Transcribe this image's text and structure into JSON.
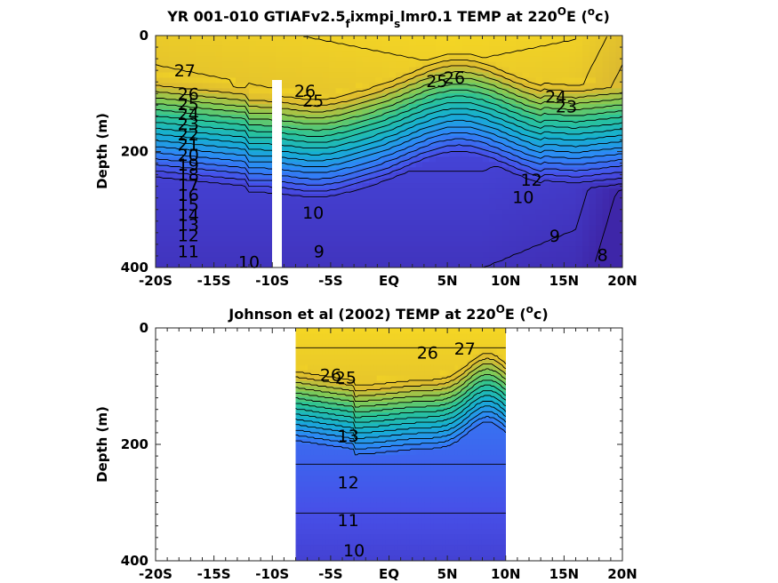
{
  "chart_data": [
    {
      "type": "heatmap",
      "subtype": "filled-contour",
      "title": "YR 001-010 GTIAFv2.5",
      "title_sub1": "f",
      "title_mid": "ixmpi",
      "title_sub2": "s",
      "title_tail": "lmr0.1 TEMP at 220",
      "title_sup": "O",
      "title_end": "E (",
      "title_sup2": "o",
      "title_close": "c)",
      "ylabel": "Depth (m)",
      "xlim": [
        -20,
        20
      ],
      "ylim": [
        0,
        400
      ],
      "y_reversed": true,
      "x_tick_labels": [
        "-20S",
        "-15S",
        "-10S",
        "-5S",
        "EQ",
        "5N",
        "10N",
        "15N",
        "20N"
      ],
      "x_ticks": [
        -20,
        -15,
        -10,
        -5,
        0,
        5,
        10,
        15,
        20
      ],
      "y_tick_labels": [
        "0",
        "200",
        "400"
      ],
      "y_ticks": [
        0,
        200,
        400
      ],
      "data_extent_lat": [
        -20,
        20
      ],
      "gap_lat": -9.5,
      "contour_levels": [
        8,
        9,
        10,
        11,
        12,
        13,
        14,
        15,
        16,
        17,
        18,
        19,
        20,
        21,
        22,
        23,
        24,
        25,
        26,
        27
      ],
      "contour_labels": [
        {
          "text": "27",
          "lat": -17.5,
          "depth": 60
        },
        {
          "text": "26",
          "lat": -17.2,
          "depth": 100
        },
        {
          "text": "25",
          "lat": -17.2,
          "depth": 118
        },
        {
          "text": "24",
          "lat": -17.2,
          "depth": 135
        },
        {
          "text": "23",
          "lat": -17.2,
          "depth": 152
        },
        {
          "text": "22",
          "lat": -17.2,
          "depth": 170
        },
        {
          "text": "21",
          "lat": -17.2,
          "depth": 187
        },
        {
          "text": "20",
          "lat": -17.2,
          "depth": 205
        },
        {
          "text": "19",
          "lat": -17.2,
          "depth": 222
        },
        {
          "text": "18",
          "lat": -17.2,
          "depth": 239
        },
        {
          "text": "17",
          "lat": -17.2,
          "depth": 257
        },
        {
          "text": "16",
          "lat": -17.2,
          "depth": 274
        },
        {
          "text": "15",
          "lat": -17.2,
          "depth": 291
        },
        {
          "text": "14",
          "lat": -17.2,
          "depth": 309
        },
        {
          "text": "13",
          "lat": -17.2,
          "depth": 326
        },
        {
          "text": "12",
          "lat": -17.2,
          "depth": 344
        },
        {
          "text": "11",
          "lat": -17.2,
          "depth": 372
        },
        {
          "text": "10",
          "lat": -12.0,
          "depth": 390
        },
        {
          "text": "26",
          "lat": -7.2,
          "depth": 95
        },
        {
          "text": "25",
          "lat": -6.5,
          "depth": 112
        },
        {
          "text": "10",
          "lat": -6.5,
          "depth": 305
        },
        {
          "text": "9",
          "lat": -6.0,
          "depth": 372
        },
        {
          "text": "25",
          "lat": 4.1,
          "depth": 78
        },
        {
          "text": "26",
          "lat": 5.6,
          "depth": 72
        },
        {
          "text": "24",
          "lat": 14.3,
          "depth": 105
        },
        {
          "text": "23",
          "lat": 15.2,
          "depth": 122
        },
        {
          "text": "12",
          "lat": 12.2,
          "depth": 248
        },
        {
          "text": "10",
          "lat": 11.5,
          "depth": 278
        },
        {
          "text": "9",
          "lat": 14.2,
          "depth": 345
        },
        {
          "text": "8",
          "lat": 18.3,
          "depth": 378
        }
      ],
      "colormap": "parula",
      "temp_range": [
        8,
        28
      ]
    },
    {
      "type": "heatmap",
      "subtype": "filled-contour",
      "title": "Johnson et al (2002) TEMP at 220",
      "title_sup": "O",
      "title_end": "E (",
      "title_sup2": "o",
      "title_close": "c)",
      "ylabel": "Depth (m)",
      "xlim": [
        -20,
        20
      ],
      "ylim": [
        0,
        400
      ],
      "y_reversed": true,
      "x_tick_labels": [
        "-20S",
        "-15S",
        "-10S",
        "-5S",
        "EQ",
        "5N",
        "10N",
        "15N",
        "20N"
      ],
      "x_ticks": [
        -20,
        -15,
        -10,
        -5,
        0,
        5,
        10,
        15,
        20
      ],
      "y_tick_labels": [
        "0",
        "200",
        "400"
      ],
      "y_ticks": [
        0,
        200,
        400
      ],
      "data_extent_lat": [
        -8,
        10
      ],
      "contour_levels": [
        10,
        11,
        12,
        13,
        14,
        15,
        16,
        17,
        18,
        19,
        20,
        21,
        22,
        23,
        24,
        25,
        26,
        27
      ],
      "contour_labels": [
        {
          "text": "26",
          "lat": -5.0,
          "depth": 80
        },
        {
          "text": "25",
          "lat": -3.7,
          "depth": 85
        },
        {
          "text": "27",
          "lat": 6.5,
          "depth": 35
        },
        {
          "text": "26",
          "lat": 3.3,
          "depth": 42
        },
        {
          "text": "13",
          "lat": -3.5,
          "depth": 185
        },
        {
          "text": "12",
          "lat": -3.5,
          "depth": 265
        },
        {
          "text": "11",
          "lat": -3.5,
          "depth": 330
        },
        {
          "text": "10",
          "lat": -3.0,
          "depth": 382
        }
      ],
      "colormap": "parula",
      "temp_range": [
        8,
        28
      ]
    }
  ]
}
